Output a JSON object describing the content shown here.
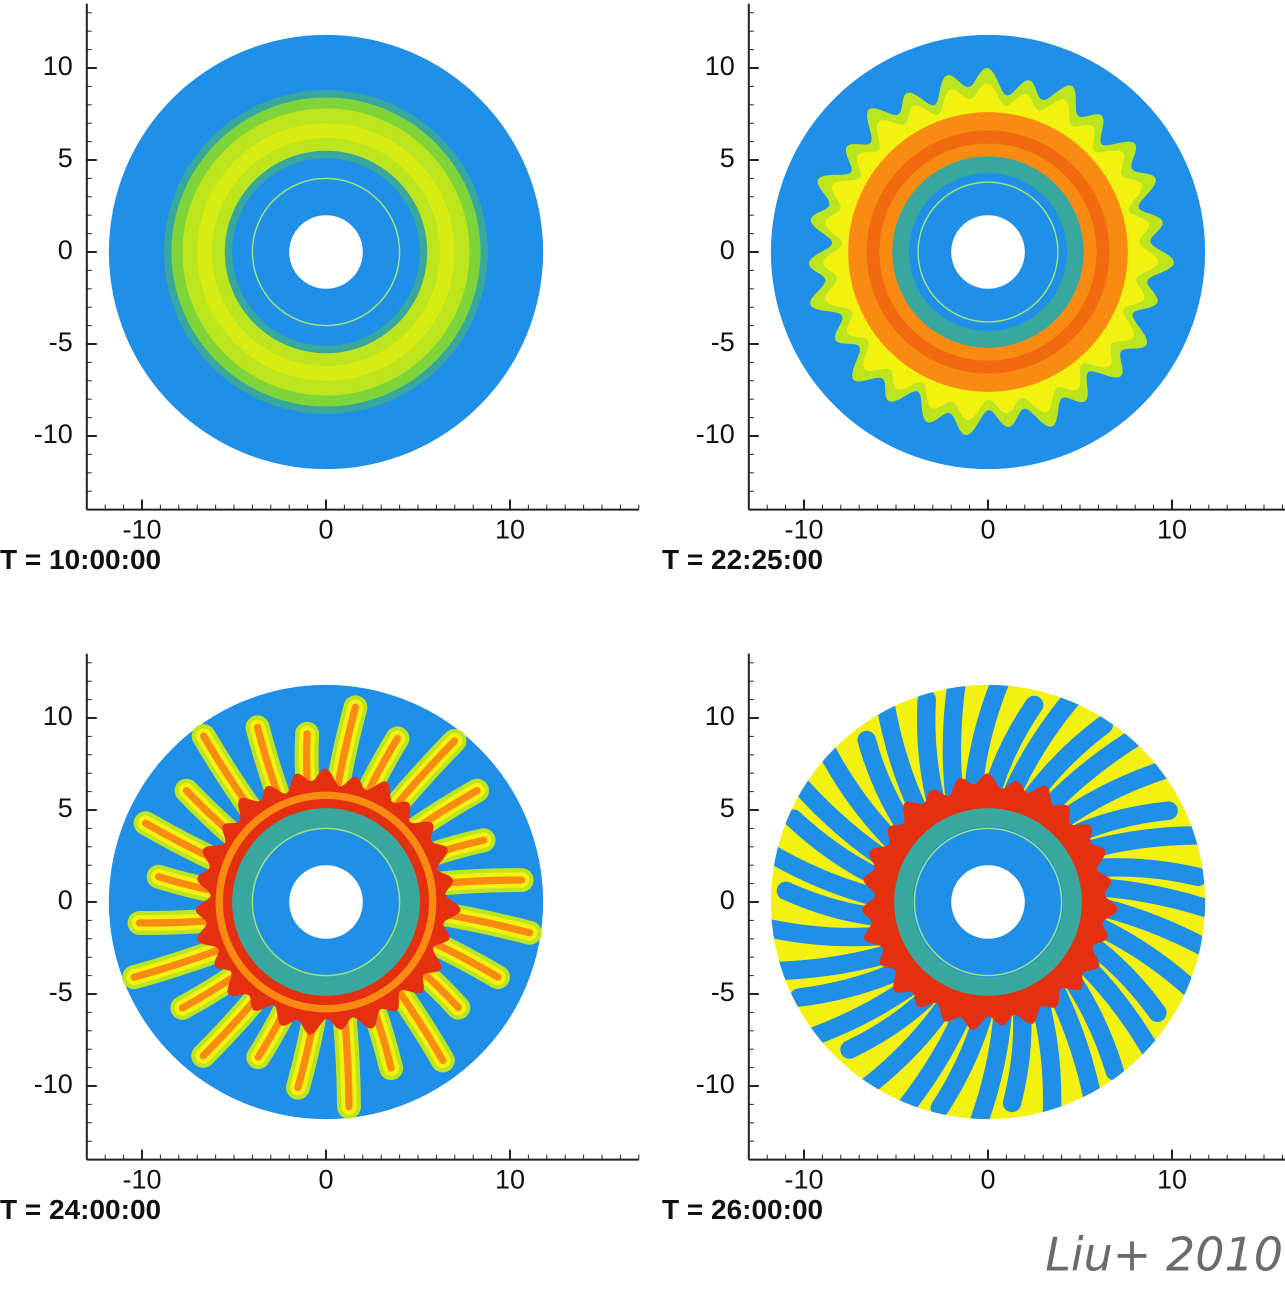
{
  "chart_data": [
    {
      "type": "contour",
      "title": "T = 10:00:00",
      "xlim": [
        -13,
        17
      ],
      "ylim": [
        -14,
        13.5
      ],
      "xticks": [
        -10,
        0,
        10
      ],
      "yticks": [
        -10,
        -5,
        0,
        5,
        10
      ]
    },
    {
      "type": "contour",
      "title": "T = 22:25:00",
      "xlim": [
        -13,
        17
      ],
      "ylim": [
        -14,
        13.5
      ],
      "xticks": [
        -10,
        0,
        10
      ],
      "yticks": [
        -10,
        -5,
        0,
        5,
        10
      ]
    },
    {
      "type": "contour",
      "title": "T = 24:00:00",
      "xlim": [
        -13,
        17
      ],
      "ylim": [
        -14,
        13.5
      ],
      "xticks": [
        -10,
        0,
        10
      ],
      "yticks": [
        -10,
        -5,
        0,
        5,
        10
      ]
    },
    {
      "type": "contour",
      "title": "T = 26:00:00",
      "xlim": [
        -13,
        17
      ],
      "ylim": [
        -14,
        13.5
      ],
      "xticks": [
        -10,
        0,
        10
      ],
      "yticks": [
        -10,
        -5,
        0,
        5,
        10
      ]
    }
  ],
  "credit": "Liu+ 2010"
}
